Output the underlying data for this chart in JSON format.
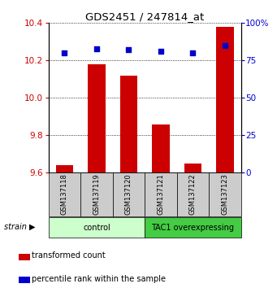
{
  "title": "GDS2451 / 247814_at",
  "samples": [
    "GSM137118",
    "GSM137119",
    "GSM137120",
    "GSM137121",
    "GSM137122",
    "GSM137123"
  ],
  "bar_values": [
    9.64,
    10.18,
    10.12,
    9.86,
    9.65,
    10.38
  ],
  "scatter_values": [
    80,
    83,
    82,
    81,
    80,
    85
  ],
  "bar_color": "#cc0000",
  "scatter_color": "#0000cc",
  "ylim_left": [
    9.6,
    10.4
  ],
  "ylim_right": [
    0,
    100
  ],
  "yticks_left": [
    9.6,
    9.8,
    10.0,
    10.2,
    10.4
  ],
  "yticks_right": [
    0,
    25,
    50,
    75,
    100
  ],
  "bar_bottom": 9.6,
  "group_info": [
    {
      "label": "control",
      "start": 0,
      "end": 3,
      "facecolor": "#ccffcc",
      "edgecolor": "#44bb44"
    },
    {
      "label": "TAC1 overexpressing",
      "start": 3,
      "end": 6,
      "facecolor": "#44cc44",
      "edgecolor": "#44bb44"
    }
  ],
  "strain_label": "strain ▶",
  "legend_bar_label": "transformed count",
  "legend_scatter_label": "percentile rank within the sample",
  "left_tick_color": "#cc0000",
  "right_tick_color": "#0000cc",
  "bg_color": "#ffffff",
  "sample_box_color": "#cccccc",
  "bar_width": 0.55
}
